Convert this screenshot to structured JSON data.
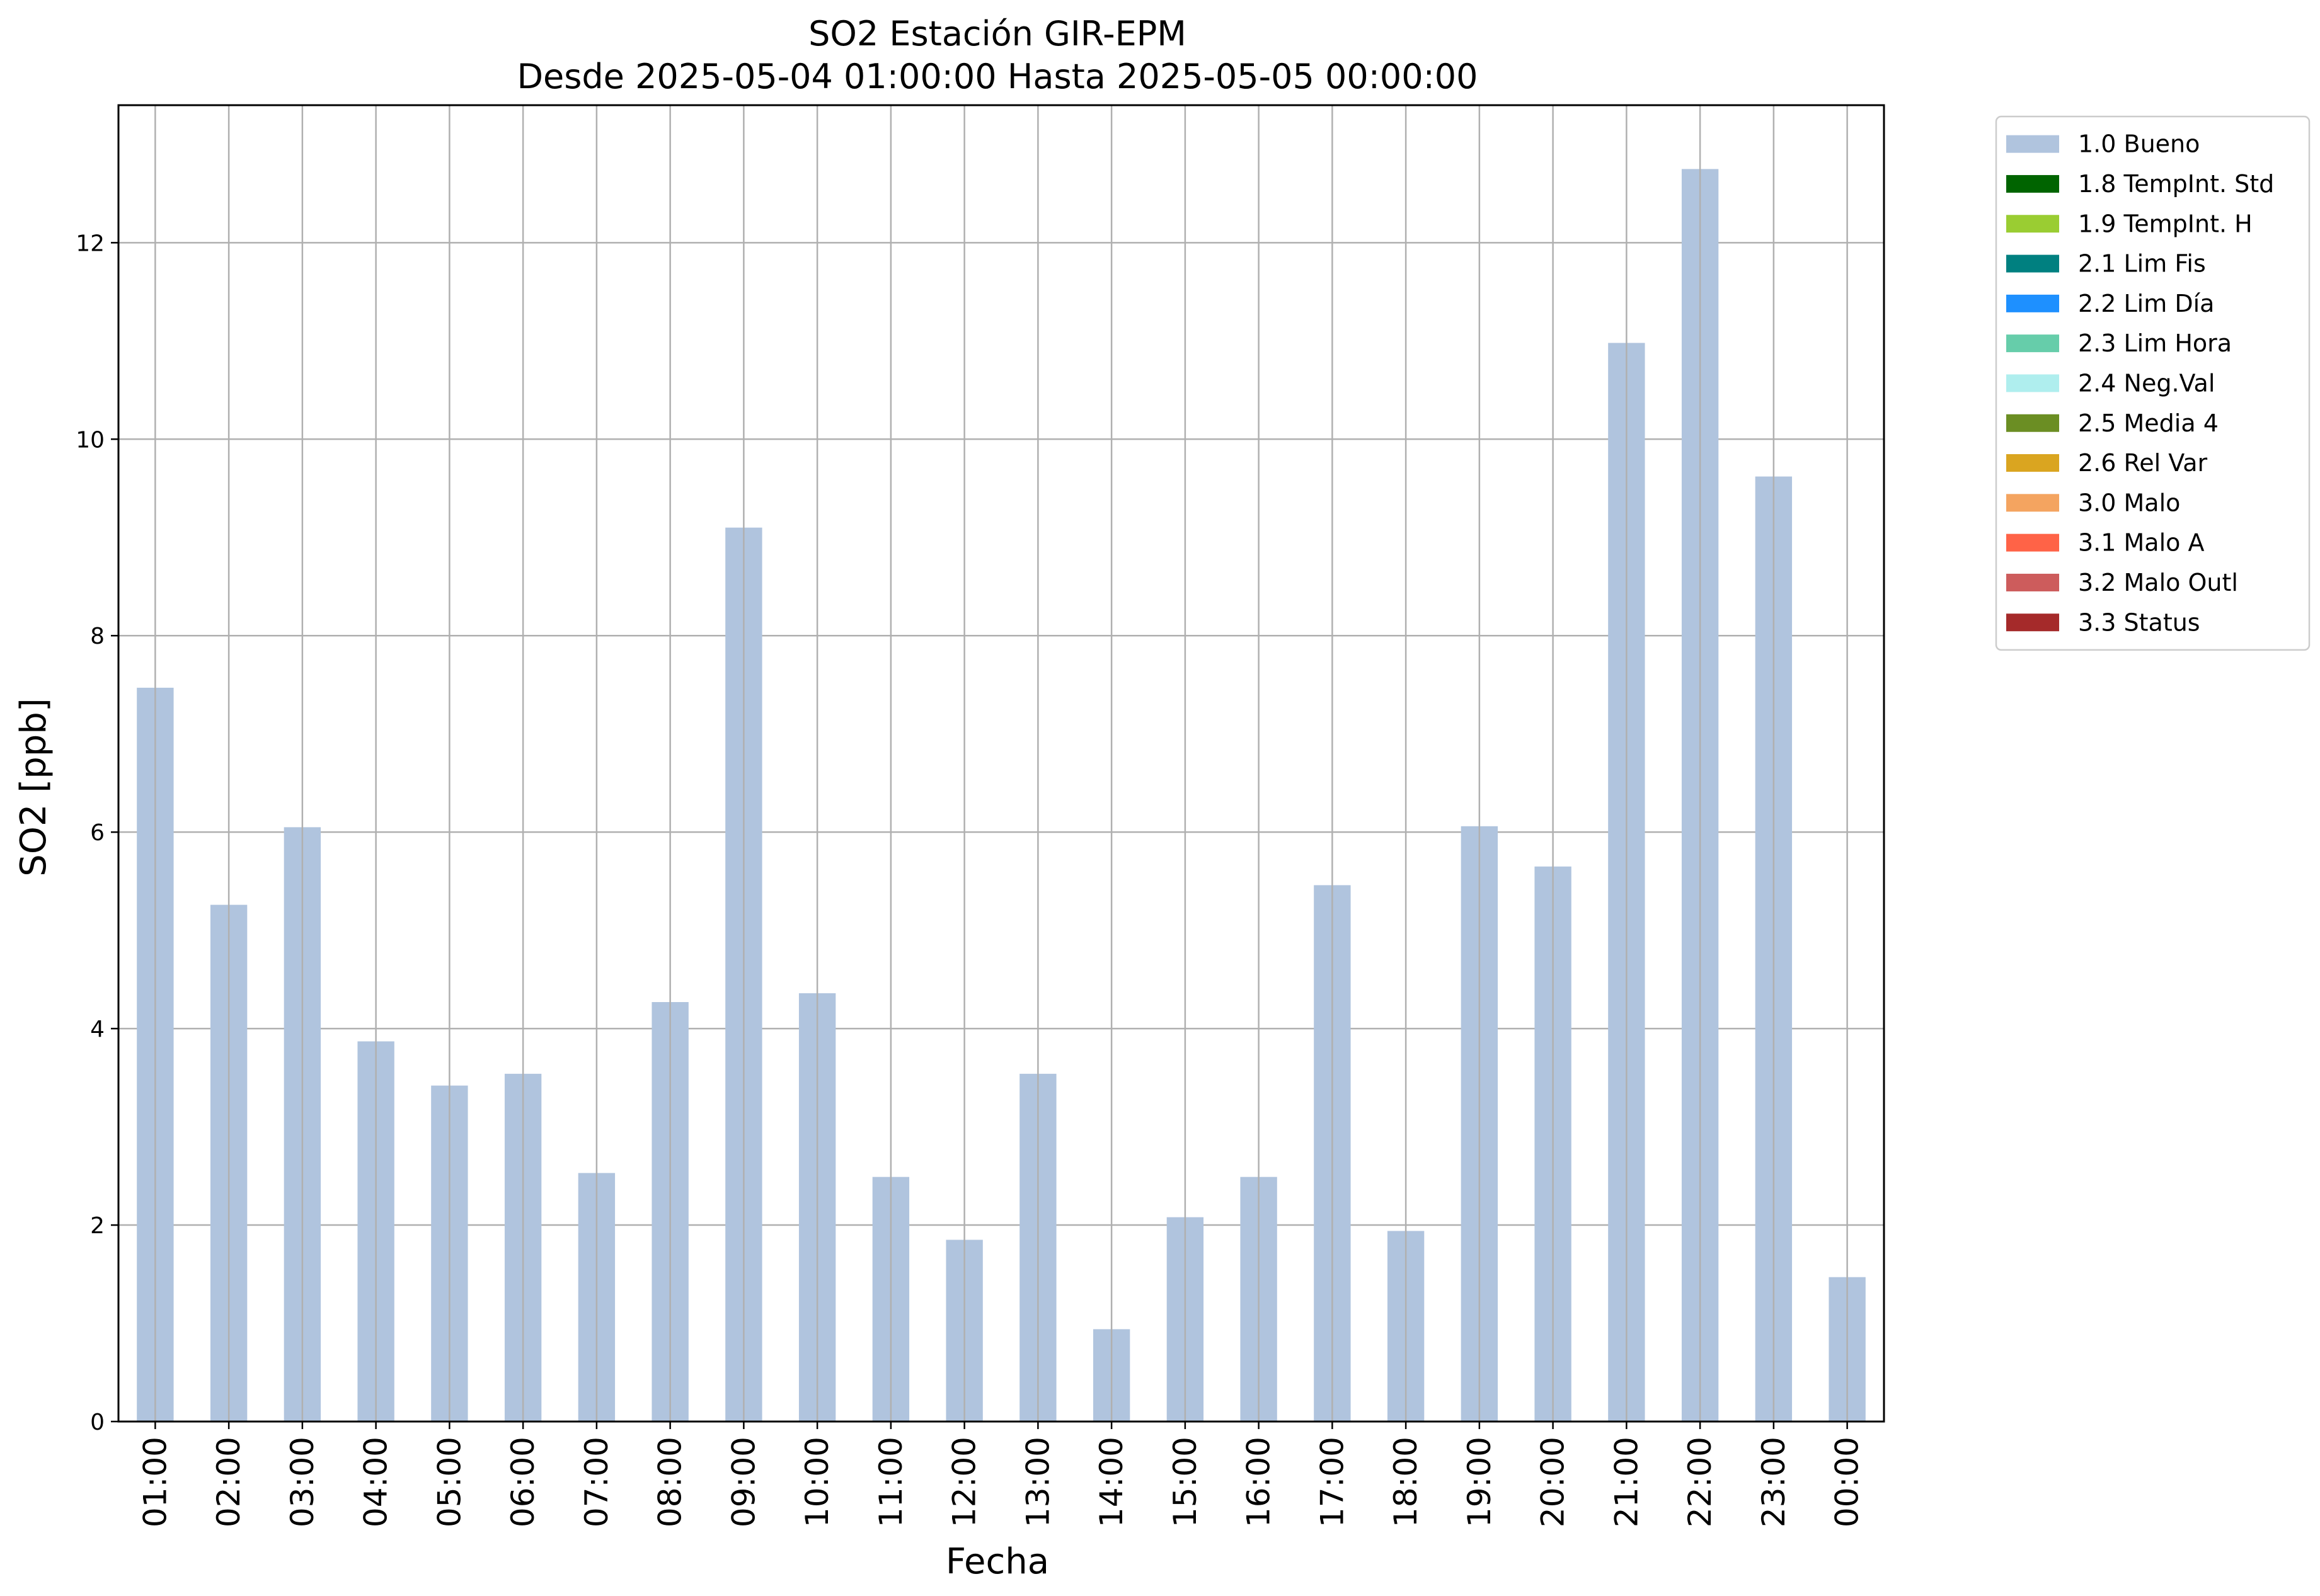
{
  "chart_data": {
    "type": "bar",
    "title": "SO2 Estación GIR-EPM",
    "subtitle": "Desde 2025-05-04 01:00:00 Hasta 2025-05-05 00:00:00",
    "xlabel": "Fecha",
    "ylabel": "SO2 [ppb]",
    "ylim": [
      0,
      13.4
    ],
    "yticks": [
      0,
      2,
      4,
      6,
      8,
      10,
      12
    ],
    "grid": true,
    "legend_position": "outside-top-right",
    "categories": [
      "01:00",
      "02:00",
      "03:00",
      "04:00",
      "05:00",
      "06:00",
      "07:00",
      "08:00",
      "09:00",
      "10:00",
      "11:00",
      "12:00",
      "13:00",
      "14:00",
      "15:00",
      "16:00",
      "17:00",
      "18:00",
      "19:00",
      "20:00",
      "21:00",
      "22:00",
      "23:00",
      "00:00"
    ],
    "series": [
      {
        "name": "1.0 Bueno",
        "color": "#b0c4de",
        "values": [
          7.47,
          5.26,
          6.05,
          3.87,
          3.42,
          3.54,
          2.53,
          4.27,
          9.1,
          4.36,
          2.49,
          1.85,
          3.54,
          0.94,
          2.08,
          2.49,
          5.46,
          1.94,
          6.06,
          5.65,
          10.98,
          12.75,
          9.62,
          1.47
        ]
      }
    ],
    "legend": [
      {
        "label": "1.0 Bueno",
        "color": "#b0c4de"
      },
      {
        "label": "1.8 TempInt. Std",
        "color": "#006400"
      },
      {
        "label": "1.9 TempInt. H",
        "color": "#9acd32"
      },
      {
        "label": "2.1 Lim Fis",
        "color": "#008080"
      },
      {
        "label": "2.2 Lim Día",
        "color": "#1e90ff"
      },
      {
        "label": "2.3 Lim Hora",
        "color": "#66cdaa"
      },
      {
        "label": "2.4 Neg.Val",
        "color": "#afeeee"
      },
      {
        "label": "2.5 Media 4",
        "color": "#6b8e23"
      },
      {
        "label": "2.6 Rel Var",
        "color": "#daa520"
      },
      {
        "label": "3.0 Malo",
        "color": "#f4a460"
      },
      {
        "label": "3.1 Malo A",
        "color": "#ff6347"
      },
      {
        "label": "3.2 Malo Outl",
        "color": "#cd5c5c"
      },
      {
        "label": "3.3 Status",
        "color": "#a52a2a"
      }
    ]
  }
}
